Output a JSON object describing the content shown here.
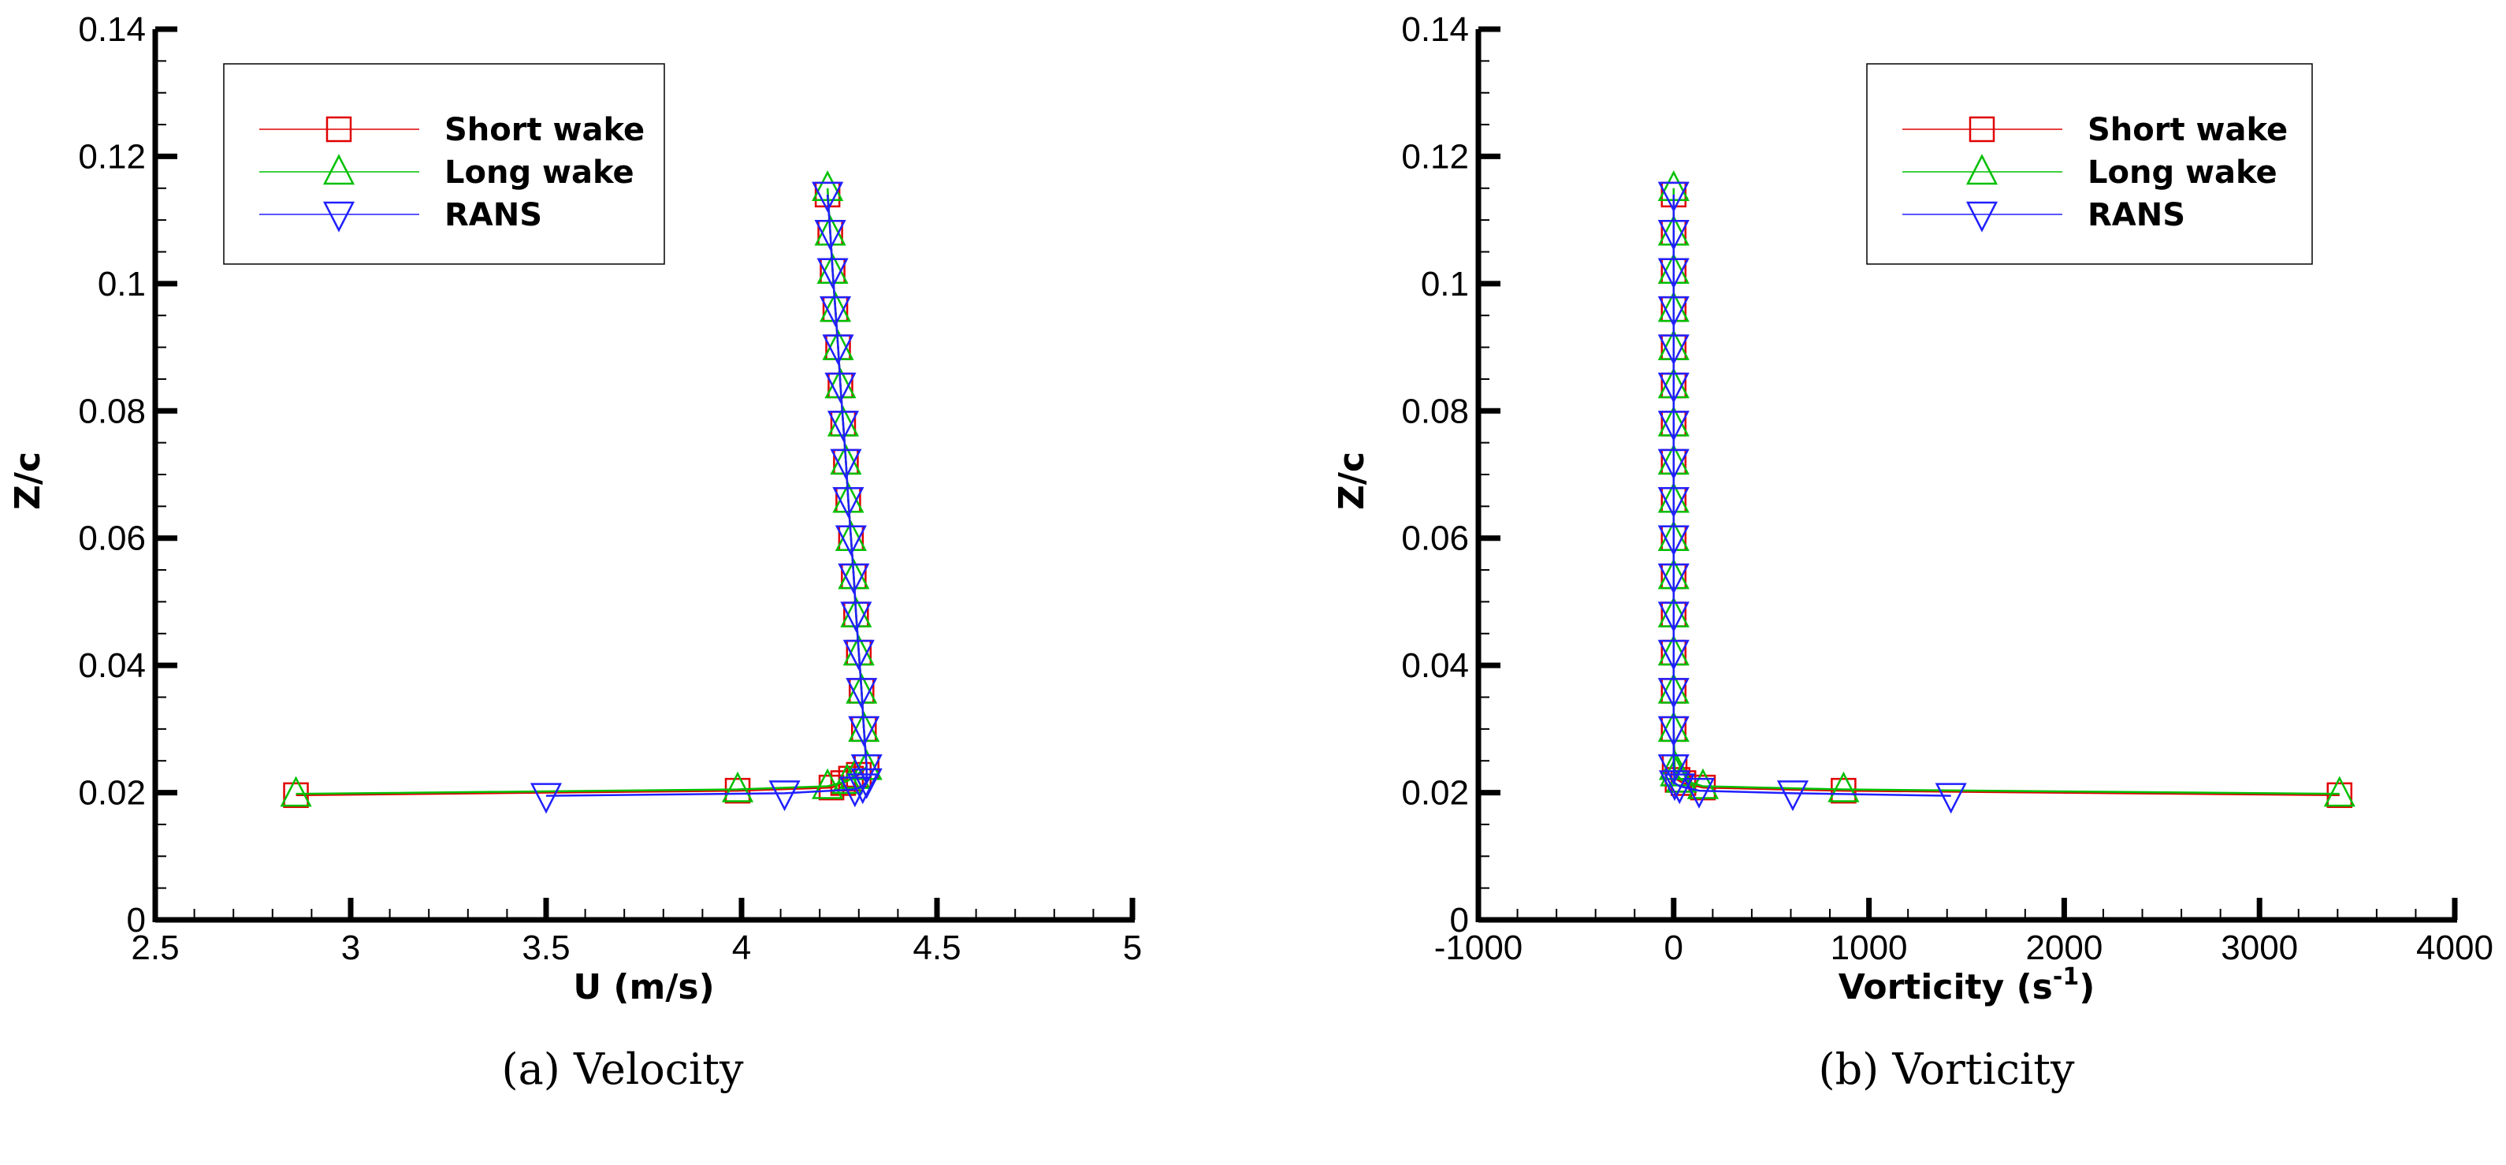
{
  "colors": {
    "Short wake": "#e00000",
    "Long wake": "#00c000",
    "RANS": "#2020ff"
  },
  "chart_data": [
    {
      "type": "line",
      "caption": "(a)  Velocity",
      "xlabel": "U (m/s)",
      "ylabel": "Z/c",
      "xlim": [
        2.5,
        5
      ],
      "ylim": [
        0,
        0.14
      ],
      "xticks": [
        "2.5",
        "3",
        "3.5",
        "4",
        "4.5",
        "5"
      ],
      "yticks": [
        "0",
        "0.02",
        "0.04",
        "0.06",
        "0.08",
        "0.1",
        "0.12",
        "0.14"
      ],
      "grid": false,
      "legend_position": "top-left",
      "series": [
        {
          "name": "Short wake",
          "marker": "square",
          "points": [
            [
              2.86,
              0.0196
            ],
            [
              3.99,
              0.0203
            ],
            [
              4.23,
              0.0208
            ],
            [
              4.26,
              0.0215
            ],
            [
              4.28,
              0.0222
            ],
            [
              4.3,
              0.0228
            ],
            [
              4.32,
              0.024
            ],
            [
              4.313,
              0.03
            ],
            [
              4.307,
              0.036
            ],
            [
              4.3,
              0.042
            ],
            [
              4.293,
              0.048
            ],
            [
              4.287,
              0.054
            ],
            [
              4.28,
              0.06
            ],
            [
              4.273,
              0.066
            ],
            [
              4.267,
              0.072
            ],
            [
              4.26,
              0.078
            ],
            [
              4.253,
              0.084
            ],
            [
              4.247,
              0.09
            ],
            [
              4.24,
              0.096
            ],
            [
              4.233,
              0.102
            ],
            [
              4.227,
              0.108
            ],
            [
              4.22,
              0.114
            ]
          ]
        },
        {
          "name": "Long wake",
          "marker": "triangle-up",
          "points": [
            [
              2.86,
              0.0198
            ],
            [
              3.99,
              0.0205
            ],
            [
              4.22,
              0.021
            ],
            [
              4.27,
              0.0218
            ],
            [
              4.29,
              0.0226
            ],
            [
              4.32,
              0.024
            ],
            [
              4.313,
              0.03
            ],
            [
              4.307,
              0.036
            ],
            [
              4.3,
              0.042
            ],
            [
              4.293,
              0.048
            ],
            [
              4.287,
              0.054
            ],
            [
              4.28,
              0.06
            ],
            [
              4.273,
              0.066
            ],
            [
              4.267,
              0.072
            ],
            [
              4.26,
              0.078
            ],
            [
              4.253,
              0.084
            ],
            [
              4.247,
              0.09
            ],
            [
              4.24,
              0.096
            ],
            [
              4.233,
              0.102
            ],
            [
              4.227,
              0.108
            ],
            [
              4.22,
              0.115
            ]
          ]
        },
        {
          "name": "RANS",
          "marker": "triangle-down",
          "points": [
            [
              3.5,
              0.0195
            ],
            [
              4.11,
              0.0199
            ],
            [
              4.29,
              0.0205
            ],
            [
              4.31,
              0.021
            ],
            [
              4.32,
              0.0218
            ],
            [
              4.32,
              0.024
            ],
            [
              4.313,
              0.03
            ],
            [
              4.307,
              0.036
            ],
            [
              4.3,
              0.042
            ],
            [
              4.293,
              0.048
            ],
            [
              4.287,
              0.054
            ],
            [
              4.28,
              0.06
            ],
            [
              4.273,
              0.066
            ],
            [
              4.267,
              0.072
            ],
            [
              4.26,
              0.078
            ],
            [
              4.253,
              0.084
            ],
            [
              4.247,
              0.09
            ],
            [
              4.24,
              0.096
            ],
            [
              4.233,
              0.102
            ],
            [
              4.227,
              0.108
            ],
            [
              4.22,
              0.114
            ]
          ]
        }
      ]
    },
    {
      "type": "line",
      "caption": "(b)  Vorticity",
      "xlabel": "Vorticity (s",
      "xlabel_sup": "-1",
      "xlabel_end": ")",
      "ylabel": "Z/c",
      "xlim": [
        -1000,
        4000
      ],
      "ylim": [
        0,
        0.14
      ],
      "xticks": [
        "-1000",
        "0",
        "1000",
        "2000",
        "3000",
        "4000"
      ],
      "yticks": [
        "0",
        "0.02",
        "0.04",
        "0.06",
        "0.08",
        "0.1",
        "0.12",
        "0.14"
      ],
      "grid": false,
      "legend_position": "top-right",
      "series": [
        {
          "name": "Short wake",
          "marker": "square",
          "points": [
            [
              3410,
              0.0196
            ],
            [
              870,
              0.0203
            ],
            [
              150,
              0.0208
            ],
            [
              50,
              0.0215
            ],
            [
              20,
              0.022
            ],
            [
              5,
              0.024
            ],
            [
              0,
              0.03
            ],
            [
              0,
              0.036
            ],
            [
              0,
              0.042
            ],
            [
              0,
              0.048
            ],
            [
              0,
              0.054
            ],
            [
              0,
              0.06
            ],
            [
              0,
              0.066
            ],
            [
              0,
              0.072
            ],
            [
              0,
              0.078
            ],
            [
              0,
              0.084
            ],
            [
              0,
              0.09
            ],
            [
              0,
              0.096
            ],
            [
              0,
              0.102
            ],
            [
              0,
              0.108
            ],
            [
              0,
              0.114
            ]
          ]
        },
        {
          "name": "Long wake",
          "marker": "triangle-up",
          "points": [
            [
              3410,
              0.0198
            ],
            [
              870,
              0.0205
            ],
            [
              150,
              0.021
            ],
            [
              40,
              0.022
            ],
            [
              10,
              0.023
            ],
            [
              5,
              0.024
            ],
            [
              0,
              0.03
            ],
            [
              0,
              0.036
            ],
            [
              0,
              0.042
            ],
            [
              0,
              0.048
            ],
            [
              0,
              0.054
            ],
            [
              0,
              0.06
            ],
            [
              0,
              0.066
            ],
            [
              0,
              0.072
            ],
            [
              0,
              0.078
            ],
            [
              0,
              0.084
            ],
            [
              0,
              0.09
            ],
            [
              0,
              0.096
            ],
            [
              0,
              0.102
            ],
            [
              0,
              0.108
            ],
            [
              0,
              0.115
            ]
          ]
        },
        {
          "name": "RANS",
          "marker": "triangle-down",
          "points": [
            [
              1420,
              0.0195
            ],
            [
              610,
              0.0199
            ],
            [
              130,
              0.0203
            ],
            [
              30,
              0.021
            ],
            [
              5,
              0.0215
            ],
            [
              0,
              0.024
            ],
            [
              0,
              0.03
            ],
            [
              0,
              0.036
            ],
            [
              0,
              0.042
            ],
            [
              0,
              0.048
            ],
            [
              0,
              0.054
            ],
            [
              0,
              0.06
            ],
            [
              0,
              0.066
            ],
            [
              0,
              0.072
            ],
            [
              0,
              0.078
            ],
            [
              0,
              0.084
            ],
            [
              0,
              0.09
            ],
            [
              0,
              0.096
            ],
            [
              0,
              0.102
            ],
            [
              0,
              0.108
            ],
            [
              0,
              0.114
            ]
          ]
        }
      ]
    }
  ]
}
